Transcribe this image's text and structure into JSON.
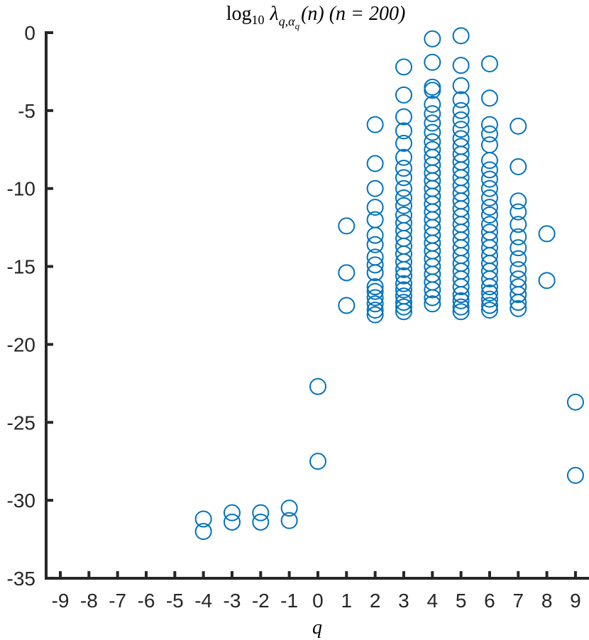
{
  "chart_data": {
    "type": "scatter",
    "title_parts": {
      "log": "log",
      "base": "10",
      "lambda": "λ",
      "sub": "q,α",
      "subsub": "q",
      "args": "(n) (n = 200)"
    },
    "xlabel": "q",
    "ylabel": "",
    "xlim": [
      -9,
      9
    ],
    "ylim": [
      -35,
      0
    ],
    "xticks": [
      -9,
      -8,
      -7,
      -6,
      -5,
      -4,
      -3,
      -2,
      -1,
      0,
      1,
      2,
      3,
      4,
      5,
      6,
      7,
      8,
      9
    ],
    "yticks": [
      0,
      -5,
      -10,
      -15,
      -20,
      -25,
      -30,
      -35
    ],
    "grid": false,
    "marker_color": "#0072BD",
    "series": [
      {
        "points": [
          {
            "x": -4,
            "y": -31.2
          },
          {
            "x": -4,
            "y": -32.0
          },
          {
            "x": -3,
            "y": -30.8
          },
          {
            "x": -3,
            "y": -31.4
          },
          {
            "x": -2,
            "y": -30.8
          },
          {
            "x": -2,
            "y": -31.4
          },
          {
            "x": -1,
            "y": -30.5
          },
          {
            "x": -1,
            "y": -31.3
          },
          {
            "x": 0,
            "y": -22.7
          },
          {
            "x": 0,
            "y": -27.5
          },
          {
            "x": 1,
            "y": -12.4
          },
          {
            "x": 1,
            "y": -15.4
          },
          {
            "x": 1,
            "y": -17.5
          },
          {
            "x": 2,
            "y": -5.9
          },
          {
            "x": 2,
            "y": -8.4
          },
          {
            "x": 2,
            "y": -10.0
          },
          {
            "x": 2,
            "y": -11.2
          },
          {
            "x": 2,
            "y": -12.0
          },
          {
            "x": 2,
            "y": -13.0
          },
          {
            "x": 2,
            "y": -13.6
          },
          {
            "x": 2,
            "y": -14.4
          },
          {
            "x": 2,
            "y": -14.9
          },
          {
            "x": 2,
            "y": -15.4
          },
          {
            "x": 2,
            "y": -16.3
          },
          {
            "x": 2,
            "y": -16.6
          },
          {
            "x": 2,
            "y": -17.0
          },
          {
            "x": 2,
            "y": -17.4
          },
          {
            "x": 2,
            "y": -17.8
          },
          {
            "x": 2,
            "y": -18.1
          },
          {
            "x": 3,
            "y": -2.2
          },
          {
            "x": 3,
            "y": -4.0
          },
          {
            "x": 3,
            "y": -5.4
          },
          {
            "x": 3,
            "y": -6.3
          },
          {
            "x": 3,
            "y": -7.1
          },
          {
            "x": 3,
            "y": -8.0
          },
          {
            "x": 3,
            "y": -8.7
          },
          {
            "x": 3,
            "y": -9.3
          },
          {
            "x": 3,
            "y": -10.0
          },
          {
            "x": 3,
            "y": -10.6
          },
          {
            "x": 3,
            "y": -11.1
          },
          {
            "x": 3,
            "y": -11.7
          },
          {
            "x": 3,
            "y": -12.2
          },
          {
            "x": 3,
            "y": -12.7
          },
          {
            "x": 3,
            "y": -13.2
          },
          {
            "x": 3,
            "y": -13.7
          },
          {
            "x": 3,
            "y": -14.2
          },
          {
            "x": 3,
            "y": -14.7
          },
          {
            "x": 3,
            "y": -15.2
          },
          {
            "x": 3,
            "y": -15.6
          },
          {
            "x": 3,
            "y": -16.1
          },
          {
            "x": 3,
            "y": -16.5
          },
          {
            "x": 3,
            "y": -16.9
          },
          {
            "x": 3,
            "y": -17.3
          },
          {
            "x": 3,
            "y": -17.6
          },
          {
            "x": 3,
            "y": -17.9
          },
          {
            "x": 4,
            "y": -0.4
          },
          {
            "x": 4,
            "y": -1.9
          },
          {
            "x": 4,
            "y": -3.5
          },
          {
            "x": 4,
            "y": -3.7
          },
          {
            "x": 4,
            "y": -4.6
          },
          {
            "x": 4,
            "y": -5.2
          },
          {
            "x": 4,
            "y": -5.8
          },
          {
            "x": 4,
            "y": -6.4
          },
          {
            "x": 4,
            "y": -7.0
          },
          {
            "x": 4,
            "y": -7.5
          },
          {
            "x": 4,
            "y": -8.0
          },
          {
            "x": 4,
            "y": -8.5
          },
          {
            "x": 4,
            "y": -9.0
          },
          {
            "x": 4,
            "y": -9.5
          },
          {
            "x": 4,
            "y": -10.0
          },
          {
            "x": 4,
            "y": -10.5
          },
          {
            "x": 4,
            "y": -11.0
          },
          {
            "x": 4,
            "y": -11.5
          },
          {
            "x": 4,
            "y": -12.0
          },
          {
            "x": 4,
            "y": -12.5
          },
          {
            "x": 4,
            "y": -13.0
          },
          {
            "x": 4,
            "y": -13.5
          },
          {
            "x": 4,
            "y": -14.0
          },
          {
            "x": 4,
            "y": -14.5
          },
          {
            "x": 4,
            "y": -15.0
          },
          {
            "x": 4,
            "y": -15.5
          },
          {
            "x": 4,
            "y": -16.0
          },
          {
            "x": 4,
            "y": -16.5
          },
          {
            "x": 4,
            "y": -17.0
          },
          {
            "x": 4,
            "y": -17.4
          },
          {
            "x": 5,
            "y": -0.2
          },
          {
            "x": 5,
            "y": -2.1
          },
          {
            "x": 5,
            "y": -3.4
          },
          {
            "x": 5,
            "y": -4.3
          },
          {
            "x": 5,
            "y": -5.0
          },
          {
            "x": 5,
            "y": -5.6
          },
          {
            "x": 5,
            "y": -6.2
          },
          {
            "x": 5,
            "y": -6.8
          },
          {
            "x": 5,
            "y": -7.3
          },
          {
            "x": 5,
            "y": -7.8
          },
          {
            "x": 5,
            "y": -8.3
          },
          {
            "x": 5,
            "y": -8.8
          },
          {
            "x": 5,
            "y": -9.3
          },
          {
            "x": 5,
            "y": -9.8
          },
          {
            "x": 5,
            "y": -10.3
          },
          {
            "x": 5,
            "y": -10.8
          },
          {
            "x": 5,
            "y": -11.3
          },
          {
            "x": 5,
            "y": -11.8
          },
          {
            "x": 5,
            "y": -12.3
          },
          {
            "x": 5,
            "y": -12.8
          },
          {
            "x": 5,
            "y": -13.3
          },
          {
            "x": 5,
            "y": -13.8
          },
          {
            "x": 5,
            "y": -14.3
          },
          {
            "x": 5,
            "y": -14.8
          },
          {
            "x": 5,
            "y": -15.3
          },
          {
            "x": 5,
            "y": -15.8
          },
          {
            "x": 5,
            "y": -16.3
          },
          {
            "x": 5,
            "y": -16.8
          },
          {
            "x": 5,
            "y": -17.2
          },
          {
            "x": 5,
            "y": -17.6
          },
          {
            "x": 5,
            "y": -17.9
          },
          {
            "x": 6,
            "y": -2.0
          },
          {
            "x": 6,
            "y": -4.2
          },
          {
            "x": 6,
            "y": -5.9
          },
          {
            "x": 6,
            "y": -6.5
          },
          {
            "x": 6,
            "y": -7.2
          },
          {
            "x": 6,
            "y": -8.2
          },
          {
            "x": 6,
            "y": -8.8
          },
          {
            "x": 6,
            "y": -9.4
          },
          {
            "x": 6,
            "y": -10.0
          },
          {
            "x": 6,
            "y": -10.6
          },
          {
            "x": 6,
            "y": -11.2
          },
          {
            "x": 6,
            "y": -11.7
          },
          {
            "x": 6,
            "y": -12.3
          },
          {
            "x": 6,
            "y": -12.8
          },
          {
            "x": 6,
            "y": -13.3
          },
          {
            "x": 6,
            "y": -13.8
          },
          {
            "x": 6,
            "y": -14.3
          },
          {
            "x": 6,
            "y": -14.8
          },
          {
            "x": 6,
            "y": -15.3
          },
          {
            "x": 6,
            "y": -15.8
          },
          {
            "x": 6,
            "y": -16.3
          },
          {
            "x": 6,
            "y": -16.7
          },
          {
            "x": 6,
            "y": -17.1
          },
          {
            "x": 6,
            "y": -17.5
          },
          {
            "x": 6,
            "y": -17.8
          },
          {
            "x": 7,
            "y": -6.0
          },
          {
            "x": 7,
            "y": -8.6
          },
          {
            "x": 7,
            "y": -10.8
          },
          {
            "x": 7,
            "y": -11.5
          },
          {
            "x": 7,
            "y": -12.3
          },
          {
            "x": 7,
            "y": -13.1
          },
          {
            "x": 7,
            "y": -13.8
          },
          {
            "x": 7,
            "y": -14.5
          },
          {
            "x": 7,
            "y": -15.2
          },
          {
            "x": 7,
            "y": -15.8
          },
          {
            "x": 7,
            "y": -16.3
          },
          {
            "x": 7,
            "y": -16.8
          },
          {
            "x": 7,
            "y": -17.3
          },
          {
            "x": 7,
            "y": -17.7
          },
          {
            "x": 8,
            "y": -12.9
          },
          {
            "x": 8,
            "y": -15.9
          },
          {
            "x": 9,
            "y": -23.7
          },
          {
            "x": 9,
            "y": -28.4
          }
        ]
      }
    ]
  }
}
